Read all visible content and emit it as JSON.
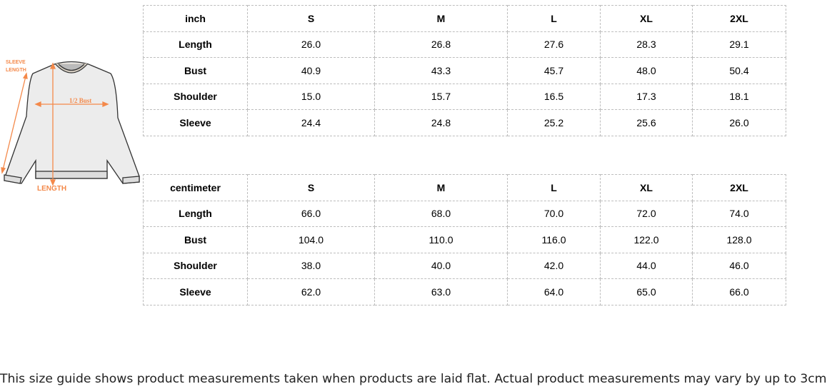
{
  "figure": {
    "sleeve_label_1": "SLEEVE",
    "sleeve_label_2": "LENGTH",
    "bust_label": "1/2 Bust",
    "length_label": "LENGTH",
    "accent": "#f4894a"
  },
  "tables": [
    {
      "unit": "inch",
      "sizes": [
        "S",
        "M",
        "L",
        "XL",
        "2XL"
      ],
      "rows": [
        {
          "label": "Length",
          "values": [
            "26.0",
            "26.8",
            "27.6",
            "28.3",
            "29.1"
          ]
        },
        {
          "label": "Bust",
          "values": [
            "40.9",
            "43.3",
            "45.7",
            "48.0",
            "50.4"
          ]
        },
        {
          "label": "Shoulder",
          "values": [
            "15.0",
            "15.7",
            "16.5",
            "17.3",
            "18.1"
          ]
        },
        {
          "label": "Sleeve",
          "values": [
            "24.4",
            "24.8",
            "25.2",
            "25.6",
            "26.0"
          ]
        }
      ]
    },
    {
      "unit": "centimeter",
      "sizes": [
        "S",
        "M",
        "L",
        "XL",
        "2XL"
      ],
      "rows": [
        {
          "label": "Length",
          "values": [
            "66.0",
            "68.0",
            "70.0",
            "72.0",
            "74.0"
          ]
        },
        {
          "label": "Bust",
          "values": [
            "104.0",
            "110.0",
            "116.0",
            "122.0",
            "128.0"
          ]
        },
        {
          "label": "Shoulder",
          "values": [
            "38.0",
            "40.0",
            "42.0",
            "44.0",
            "46.0"
          ]
        },
        {
          "label": "Sleeve",
          "values": [
            "62.0",
            "63.0",
            "64.0",
            "65.0",
            "66.0"
          ]
        }
      ]
    }
  ],
  "note": "This size guide shows product measurements taken when products are laid flat. Actual product measurements may vary by up to 3cm"
}
